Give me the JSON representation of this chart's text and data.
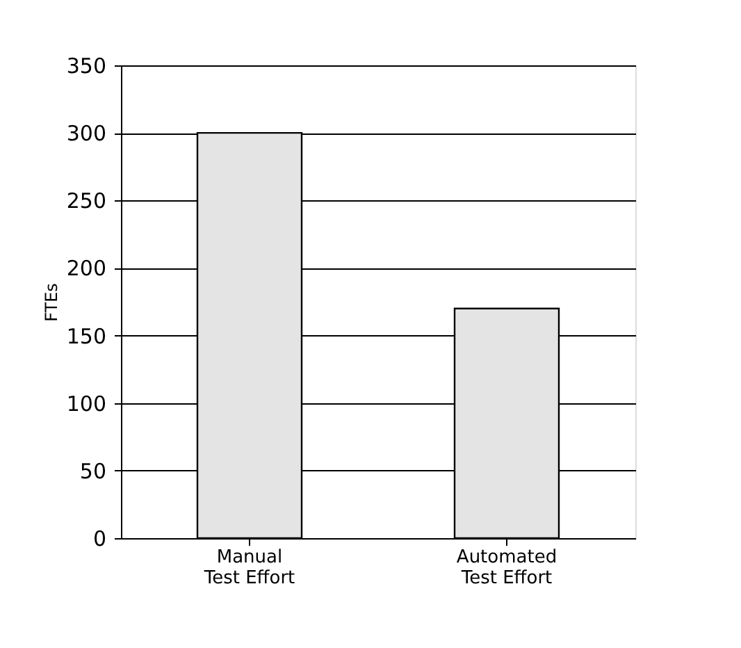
{
  "chart_data": {
    "type": "bar",
    "categories": [
      "Manual\nTest Effort",
      "Automated\nTest Effort"
    ],
    "values": [
      300,
      170
    ],
    "color": "#e4e4e4",
    "ylabel": "FTEs",
    "ylim": [
      0,
      350
    ],
    "yticks": [
      0,
      50,
      100,
      150,
      200,
      250,
      300,
      350
    ],
    "grid": "y"
  }
}
